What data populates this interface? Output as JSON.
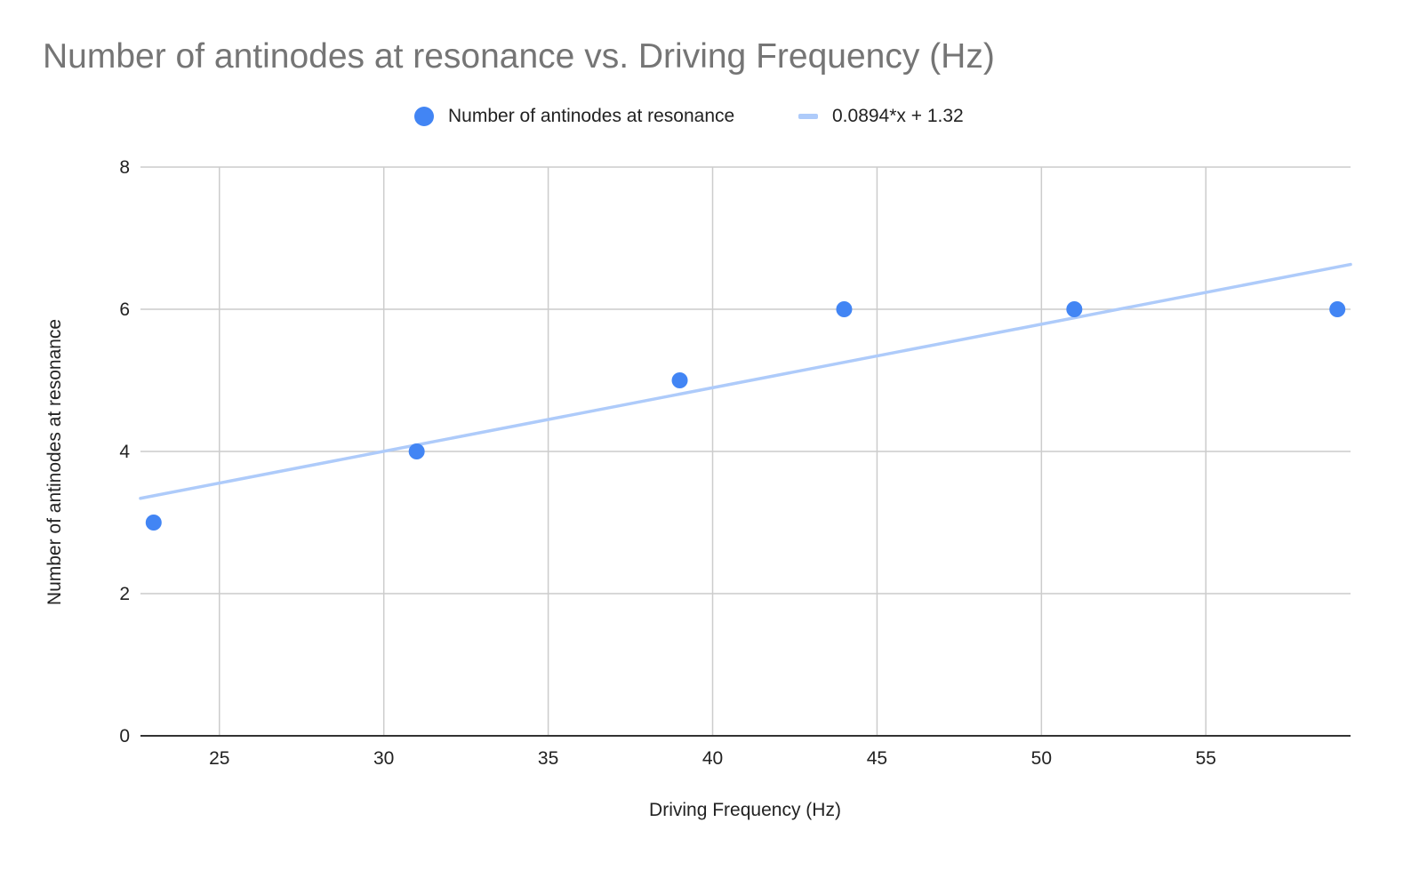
{
  "chart_data": {
    "type": "scatter",
    "title": "Number of antinodes at resonance vs. Driving Frequency (Hz)",
    "xlabel": "Driving Frequency (Hz)",
    "ylabel": "Number of antinodes at resonance",
    "xlim": [
      22.6,
      59.4
    ],
    "ylim": [
      0,
      8
    ],
    "x_ticks": [
      25,
      30,
      35,
      40,
      45,
      50,
      55
    ],
    "y_ticks": [
      0,
      2,
      4,
      6,
      8
    ],
    "grid": true,
    "legend_position": "top",
    "series": [
      {
        "name": "Number of antinodes at resonance",
        "color": "#4285f4",
        "points": [
          {
            "x": 23,
            "y": 3
          },
          {
            "x": 31,
            "y": 4
          },
          {
            "x": 39,
            "y": 5
          },
          {
            "x": 44,
            "y": 6
          },
          {
            "x": 51,
            "y": 6
          },
          {
            "x": 59,
            "y": 6
          }
        ]
      }
    ],
    "trendline": {
      "name": "0.0894*x + 1.32",
      "slope": 0.0894,
      "intercept": 1.32,
      "color": "#aecbfa"
    },
    "colors": {
      "title": "#757575",
      "grid": "#cccccc",
      "axis": "#333333",
      "text": "#222222"
    }
  }
}
